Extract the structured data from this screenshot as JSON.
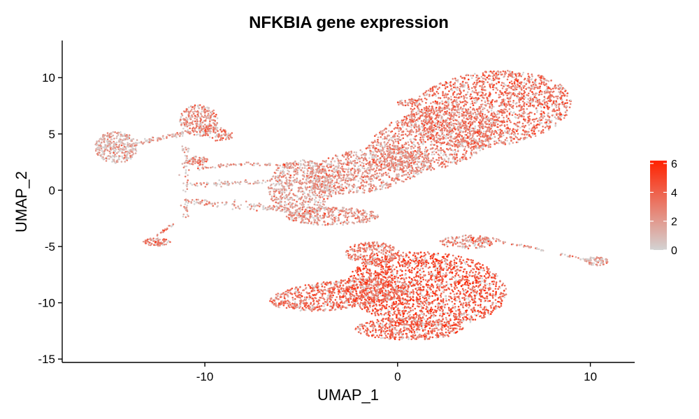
{
  "chart_data": {
    "type": "scatter",
    "title": "NFKBIA gene expression",
    "xlabel": "UMAP_1",
    "ylabel": "UMAP_2",
    "xlim": [
      -17.4,
      12.3
    ],
    "ylim": [
      -15.3,
      13.3
    ],
    "xticks": [
      -10,
      0,
      10
    ],
    "xtick_labels": [
      "-10",
      "0",
      "10"
    ],
    "yticks": [
      -15,
      -10,
      -5,
      0,
      5,
      10
    ],
    "ytick_labels": [
      "-15",
      "-10",
      "-5",
      "0",
      "5",
      "10"
    ],
    "grid": false,
    "legend": {
      "placement": "right",
      "min": 0,
      "max": 6.2,
      "ticks": [
        0,
        2,
        4,
        6
      ],
      "tick_labels": [
        "0",
        "2",
        "4",
        "6"
      ],
      "color_low": "#d3d3d3",
      "color_high": "#ff2200"
    },
    "point_color_low": "#d3d3d3",
    "point_color_high": "#ff2200",
    "clusters": [
      {
        "shape": "ellipse",
        "cx": 4.8,
        "cy": 7.2,
        "rx": 4.3,
        "ry": 3.3,
        "rot": 20,
        "n": 1900,
        "mean": 3.3
      },
      {
        "shape": "ellipse",
        "cx": 1.8,
        "cy": 4.5,
        "rx": 3.6,
        "ry": 2.5,
        "rot": 32,
        "n": 1100,
        "mean": 2.8
      },
      {
        "shape": "ellipse",
        "cx": -1.6,
        "cy": 1.8,
        "rx": 3.4,
        "ry": 1.9,
        "rot": 22,
        "n": 950,
        "mean": 2.3
      },
      {
        "shape": "ellipse",
        "cx": -5.0,
        "cy": 0.2,
        "rx": 1.7,
        "ry": 2.5,
        "rot": 0,
        "n": 650,
        "mean": 1.8
      },
      {
        "shape": "ellipse",
        "cx": -3.4,
        "cy": -2.3,
        "rx": 2.4,
        "ry": 0.8,
        "rot": 0,
        "n": 350,
        "mean": 2.4
      },
      {
        "shape": "ellipse",
        "cx": 1.5,
        "cy": -8.8,
        "rx": 4.2,
        "ry": 3.3,
        "rot": -10,
        "n": 2000,
        "mean": 4.3
      },
      {
        "shape": "ellipse",
        "cx": -3.0,
        "cy": -9.3,
        "rx": 3.7,
        "ry": 1.3,
        "rot": 10,
        "n": 900,
        "mean": 3.6
      },
      {
        "shape": "ellipse",
        "cx": 0.6,
        "cy": -12.3,
        "rx": 2.8,
        "ry": 1.0,
        "rot": 0,
        "n": 500,
        "mean": 3.9
      },
      {
        "shape": "ellipse",
        "cx": -1.3,
        "cy": -5.6,
        "rx": 1.4,
        "ry": 1.0,
        "rot": 0,
        "n": 250,
        "mean": 3.2
      },
      {
        "shape": "ellipse",
        "cx": 3.6,
        "cy": -4.6,
        "rx": 1.4,
        "ry": 0.6,
        "rot": 0,
        "n": 150,
        "mean": 2.6
      },
      {
        "shape": "ellipse",
        "cx": -14.6,
        "cy": 3.8,
        "rx": 1.1,
        "ry": 1.4,
        "rot": 0,
        "n": 350,
        "mean": 1.5
      },
      {
        "shape": "ellipse",
        "cx": -10.3,
        "cy": 6.2,
        "rx": 1.0,
        "ry": 1.4,
        "rot": 0,
        "n": 280,
        "mean": 2.6
      },
      {
        "shape": "ellipse",
        "cx": -9.4,
        "cy": 5.0,
        "rx": 0.9,
        "ry": 0.6,
        "rot": -20,
        "n": 90,
        "mean": 2.8
      },
      {
        "shape": "ellipse",
        "cx": -10.4,
        "cy": 2.6,
        "rx": 0.6,
        "ry": 0.4,
        "rot": 0,
        "n": 60,
        "mean": 2.5
      },
      {
        "shape": "ellipse",
        "cx": -12.5,
        "cy": -4.6,
        "rx": 0.7,
        "ry": 0.35,
        "rot": 0,
        "n": 70,
        "mean": 3.0
      },
      {
        "shape": "ellipse",
        "cx": 10.3,
        "cy": -6.3,
        "rx": 0.6,
        "ry": 0.4,
        "rot": 0,
        "n": 80,
        "mean": 1.7
      },
      {
        "shape": "ellipse",
        "cx": 0.5,
        "cy": 7.8,
        "rx": 0.6,
        "ry": 0.3,
        "rot": 10,
        "n": 40,
        "mean": 2.5
      },
      {
        "shape": "line",
        "x1": -13.4,
        "y1": 4.2,
        "x2": -10.8,
        "y2": 5.2,
        "spread": 0.25,
        "n": 70,
        "mean": 1.4
      },
      {
        "shape": "line",
        "x1": -11.0,
        "y1": -0.9,
        "x2": -5.6,
        "y2": -1.7,
        "spread": 0.35,
        "n": 120,
        "mean": 1.5
      },
      {
        "shape": "line",
        "x1": -10.8,
        "y1": 0.5,
        "x2": -6.5,
        "y2": 0.8,
        "spread": 0.2,
        "n": 70,
        "mean": 1.2
      },
      {
        "shape": "line",
        "x1": -11.0,
        "y1": -2.5,
        "x2": -11.0,
        "y2": 4.0,
        "spread": 0.2,
        "n": 60,
        "mean": 1.3
      },
      {
        "shape": "line",
        "x1": -10.4,
        "y1": 2.0,
        "x2": -7.6,
        "y2": 2.4,
        "spread": 0.15,
        "n": 40,
        "mean": 2.0
      },
      {
        "shape": "line",
        "x1": 4.5,
        "y1": -4.2,
        "x2": 9.9,
        "y2": -6.2,
        "spread": 0.12,
        "n": 60,
        "mean": 2.2
      },
      {
        "shape": "line",
        "x1": -12.8,
        "y1": -4.4,
        "x2": -11.6,
        "y2": -3.0,
        "spread": 0.1,
        "n": 20,
        "mean": 2.5
      },
      {
        "shape": "line",
        "x1": -5.0,
        "y1": 2.3,
        "x2": -7.5,
        "y2": 2.3,
        "spread": 0.15,
        "n": 40,
        "mean": 2.0
      }
    ]
  }
}
